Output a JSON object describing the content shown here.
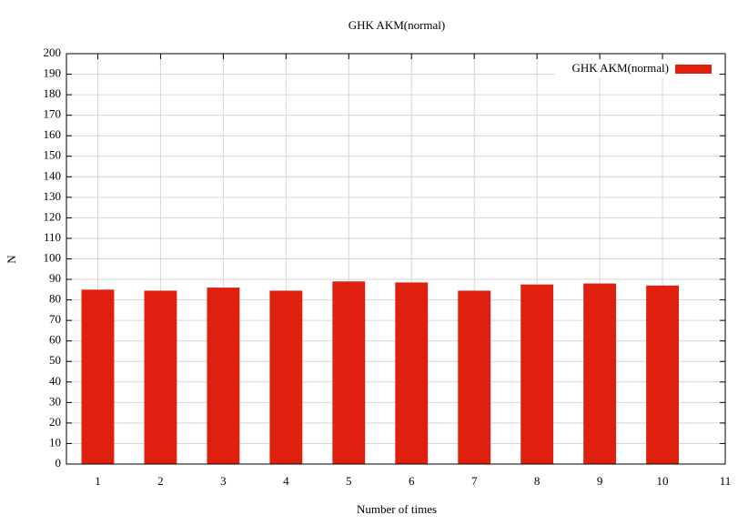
{
  "chart_data": {
    "type": "bar",
    "title": "GHK AKM(normal)",
    "x_label": "Number of times",
    "y_label": "N",
    "x": [
      1,
      2,
      3,
      4,
      5,
      6,
      7,
      8,
      9,
      10
    ],
    "series": [
      {
        "name": "GHK AKM(normal)",
        "color": "#e0200e",
        "values": [
          85,
          84.5,
          86,
          84.5,
          89,
          88.5,
          84.5,
          87.5,
          88,
          87
        ]
      }
    ],
    "xlim": [
      0.5,
      11
    ],
    "xticks": [
      1,
      2,
      3,
      4,
      5,
      6,
      7,
      8,
      9,
      10,
      11
    ],
    "ylim": [
      0,
      200
    ],
    "yticks": [
      0,
      10,
      20,
      30,
      40,
      50,
      60,
      70,
      80,
      90,
      100,
      110,
      120,
      130,
      140,
      150,
      160,
      170,
      180,
      190,
      200
    ],
    "grid": true,
    "legend_position": "top-right",
    "bar_width": 0.52
  }
}
